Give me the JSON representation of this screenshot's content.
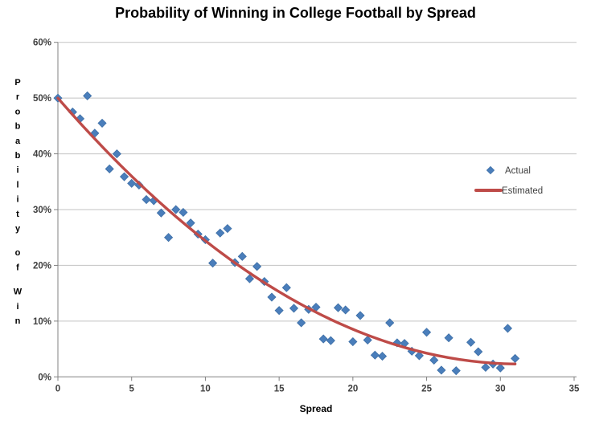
{
  "chart_data": {
    "type": "scatter",
    "title": "Probability of Winning in College Football by Spread",
    "xlabel": "Spread",
    "ylabel": "Probability of Win",
    "xlim": [
      0,
      35
    ],
    "ylim_pct": [
      0,
      60
    ],
    "x_ticks": [
      0,
      5,
      10,
      15,
      20,
      25,
      30,
      35
    ],
    "y_ticks": [
      "60%",
      "50%",
      "40%",
      "30%",
      "20%",
      "10%",
      "0%"
    ],
    "grid": "horizontal",
    "legend": {
      "position": "middle-right",
      "entries": [
        {
          "label": "Actual",
          "swatch": "diamond"
        },
        {
          "label": "Estimated",
          "swatch": "line"
        }
      ]
    },
    "series": [
      {
        "name": "Actual",
        "type": "scatter",
        "marker": "diamond",
        "color": "#4A7EBB",
        "marker_border": "#3E6FA6",
        "points": [
          [
            0,
            50.0
          ],
          [
            1,
            47.5
          ],
          [
            1.5,
            46.3
          ],
          [
            2,
            50.4
          ],
          [
            2.5,
            43.7
          ],
          [
            3,
            45.5
          ],
          [
            3.5,
            37.3
          ],
          [
            4,
            40.0
          ],
          [
            4.5,
            35.9
          ],
          [
            5,
            34.7
          ],
          [
            5.5,
            34.4
          ],
          [
            6,
            31.8
          ],
          [
            6.5,
            31.6
          ],
          [
            7,
            29.4
          ],
          [
            7.5,
            25.0
          ],
          [
            8,
            30.0
          ],
          [
            8.5,
            29.5
          ],
          [
            9,
            27.6
          ],
          [
            9.5,
            25.6
          ],
          [
            10,
            24.6
          ],
          [
            10.5,
            20.4
          ],
          [
            11,
            25.8
          ],
          [
            11.5,
            26.6
          ],
          [
            12,
            20.5
          ],
          [
            12.5,
            21.6
          ],
          [
            13,
            17.6
          ],
          [
            13.5,
            19.8
          ],
          [
            14,
            17.1
          ],
          [
            14.5,
            14.3
          ],
          [
            15,
            11.9
          ],
          [
            15.5,
            16.0
          ],
          [
            16,
            12.3
          ],
          [
            16.5,
            9.7
          ],
          [
            17,
            12.1
          ],
          [
            17.5,
            12.5
          ],
          [
            18,
            6.8
          ],
          [
            18.5,
            6.5
          ],
          [
            19,
            12.4
          ],
          [
            19.5,
            12.0
          ],
          [
            20,
            6.3
          ],
          [
            20.5,
            11.0
          ],
          [
            21,
            6.6
          ],
          [
            21.5,
            3.9
          ],
          [
            22,
            3.7
          ],
          [
            22.5,
            9.7
          ],
          [
            23,
            6.1
          ],
          [
            23.5,
            6.0
          ],
          [
            24,
            4.6
          ],
          [
            24.5,
            3.8
          ],
          [
            25,
            8.0
          ],
          [
            25.5,
            3.0
          ],
          [
            26,
            1.2
          ],
          [
            26.5,
            7.0
          ],
          [
            27,
            1.1
          ],
          [
            28,
            6.2
          ],
          [
            28.5,
            4.5
          ],
          [
            29,
            1.7
          ],
          [
            29.5,
            2.3
          ],
          [
            30,
            1.6
          ],
          [
            30.5,
            8.7
          ],
          [
            31,
            3.3
          ]
        ]
      },
      {
        "name": "Estimated",
        "type": "line",
        "color": "#BE4B48",
        "x_range": [
          0,
          31
        ],
        "fit": {
          "form": "quadratic",
          "a": 0.0486,
          "b": -3.045,
          "c": 50.0
        },
        "points": [
          [
            0,
            50.0
          ],
          [
            1,
            47.0
          ],
          [
            2,
            44.1
          ],
          [
            3,
            41.3
          ],
          [
            4,
            38.6
          ],
          [
            5,
            36.0
          ],
          [
            6,
            33.5
          ],
          [
            7,
            31.1
          ],
          [
            8,
            28.8
          ],
          [
            9,
            26.5
          ],
          [
            10,
            24.4
          ],
          [
            11,
            22.4
          ],
          [
            12,
            20.5
          ],
          [
            13,
            18.6
          ],
          [
            14,
            16.9
          ],
          [
            15,
            15.3
          ],
          [
            16,
            13.7
          ],
          [
            17,
            12.3
          ],
          [
            18,
            10.9
          ],
          [
            19,
            9.7
          ],
          [
            20,
            8.5
          ],
          [
            21,
            7.5
          ],
          [
            22,
            6.5
          ],
          [
            23,
            5.7
          ],
          [
            24,
            4.9
          ],
          [
            25,
            4.3
          ],
          [
            26,
            3.7
          ],
          [
            27,
            3.3
          ],
          [
            28,
            2.9
          ],
          [
            29,
            2.7
          ],
          [
            30,
            2.5
          ],
          [
            31,
            2.5
          ]
        ]
      }
    ]
  },
  "colors": {
    "background": "#FFFFFF",
    "gridline": "#C3C3C3",
    "axis": "#808080",
    "tick_label": "#3F3F3F",
    "legend_text": "#3F3F3F",
    "actual_marker": "#4A7EBB",
    "estimated_line": "#BE4B48",
    "title": "#000000"
  }
}
